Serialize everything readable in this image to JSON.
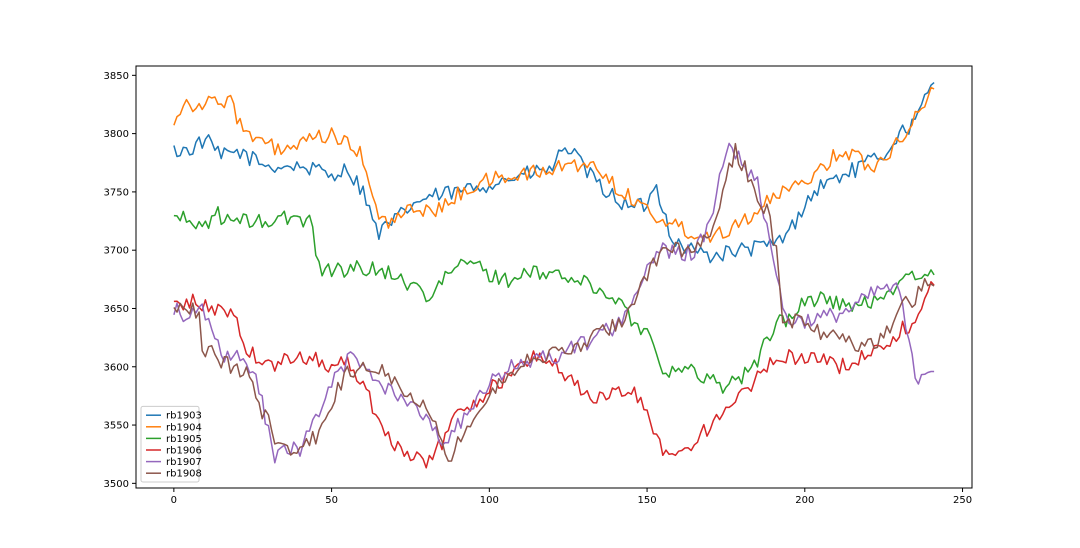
{
  "chart_data": {
    "type": "line",
    "title": "",
    "xlabel": "",
    "ylabel": "",
    "xlim": [
      -12,
      253
    ],
    "ylim": [
      3496,
      3858
    ],
    "xticks": [
      0,
      50,
      100,
      150,
      200,
      250
    ],
    "yticks": [
      3500,
      3550,
      3600,
      3650,
      3700,
      3750,
      3800,
      3850
    ],
    "grid": false,
    "legend_position": "lower-left",
    "x_length": 242,
    "series": [
      {
        "name": "rb1903",
        "color": "#1f77b4",
        "anchors": [
          [
            0,
            3785
          ],
          [
            5,
            3786
          ],
          [
            10,
            3795
          ],
          [
            15,
            3780
          ],
          [
            20,
            3785
          ],
          [
            25,
            3778
          ],
          [
            30,
            3772
          ],
          [
            40,
            3772
          ],
          [
            50,
            3765
          ],
          [
            55,
            3770
          ],
          [
            58,
            3758
          ],
          [
            60,
            3752
          ],
          [
            63,
            3725
          ],
          [
            65,
            3715
          ],
          [
            70,
            3725
          ],
          [
            75,
            3738
          ],
          [
            80,
            3745
          ],
          [
            90,
            3750
          ],
          [
            100,
            3757
          ],
          [
            110,
            3764
          ],
          [
            120,
            3770
          ],
          [
            124,
            3790
          ],
          [
            126,
            3785
          ],
          [
            130,
            3770
          ],
          [
            135,
            3755
          ],
          [
            140,
            3745
          ],
          [
            145,
            3735
          ],
          [
            150,
            3740
          ],
          [
            153,
            3755
          ],
          [
            158,
            3710
          ],
          [
            160,
            3705
          ],
          [
            165,
            3700
          ],
          [
            170,
            3695
          ],
          [
            180,
            3700
          ],
          [
            190,
            3705
          ],
          [
            195,
            3715
          ],
          [
            200,
            3740
          ],
          [
            205,
            3755
          ],
          [
            210,
            3762
          ],
          [
            215,
            3768
          ],
          [
            220,
            3775
          ],
          [
            225,
            3782
          ],
          [
            230,
            3800
          ],
          [
            235,
            3810
          ],
          [
            240,
            3840
          ]
        ]
      },
      {
        "name": "rb1904",
        "color": "#ff7f0e",
        "anchors": [
          [
            0,
            3812
          ],
          [
            3,
            3826
          ],
          [
            10,
            3825
          ],
          [
            15,
            3828
          ],
          [
            19,
            3832
          ],
          [
            20,
            3810
          ],
          [
            25,
            3795
          ],
          [
            35,
            3785
          ],
          [
            45,
            3795
          ],
          [
            50,
            3800
          ],
          [
            55,
            3790
          ],
          [
            60,
            3780
          ],
          [
            63,
            3745
          ],
          [
            65,
            3725
          ],
          [
            70,
            3725
          ],
          [
            75,
            3735
          ],
          [
            80,
            3735
          ],
          [
            85,
            3735
          ],
          [
            90,
            3748
          ],
          [
            95,
            3755
          ],
          [
            100,
            3760
          ],
          [
            110,
            3765
          ],
          [
            120,
            3768
          ],
          [
            125,
            3775
          ],
          [
            135,
            3770
          ],
          [
            140,
            3755
          ],
          [
            145,
            3745
          ],
          [
            150,
            3735
          ],
          [
            155,
            3725
          ],
          [
            160,
            3720
          ],
          [
            165,
            3715
          ],
          [
            170,
            3712
          ],
          [
            175,
            3718
          ],
          [
            180,
            3725
          ],
          [
            185,
            3735
          ],
          [
            190,
            3745
          ],
          [
            195,
            3750
          ],
          [
            200,
            3760
          ],
          [
            205,
            3770
          ],
          [
            210,
            3782
          ],
          [
            215,
            3785
          ],
          [
            220,
            3770
          ],
          [
            225,
            3780
          ],
          [
            230,
            3795
          ],
          [
            235,
            3815
          ],
          [
            240,
            3835
          ]
        ]
      },
      {
        "name": "rb1905",
        "color": "#2ca02c",
        "anchors": [
          [
            0,
            3730
          ],
          [
            5,
            3724
          ],
          [
            10,
            3722
          ],
          [
            13,
            3732
          ],
          [
            18,
            3724
          ],
          [
            25,
            3725
          ],
          [
            30,
            3724
          ],
          [
            35,
            3727
          ],
          [
            40,
            3727
          ],
          [
            44,
            3724
          ],
          [
            45,
            3695
          ],
          [
            47,
            3685
          ],
          [
            50,
            3683
          ],
          [
            60,
            3685
          ],
          [
            70,
            3680
          ],
          [
            75,
            3670
          ],
          [
            80,
            3662
          ],
          [
            85,
            3672
          ],
          [
            90,
            3688
          ],
          [
            95,
            3688
          ],
          [
            100,
            3680
          ],
          [
            105,
            3674
          ],
          [
            110,
            3678
          ],
          [
            115,
            3680
          ],
          [
            120,
            3680
          ],
          [
            125,
            3677
          ],
          [
            130,
            3672
          ],
          [
            135,
            3665
          ],
          [
            140,
            3660
          ],
          [
            145,
            3640
          ],
          [
            150,
            3630
          ],
          [
            155,
            3600
          ],
          [
            160,
            3595
          ],
          [
            165,
            3596
          ],
          [
            170,
            3590
          ],
          [
            175,
            3583
          ],
          [
            180,
            3592
          ],
          [
            185,
            3605
          ],
          [
            190,
            3635
          ],
          [
            195,
            3642
          ],
          [
            200,
            3655
          ],
          [
            205,
            3660
          ],
          [
            210,
            3655
          ],
          [
            215,
            3650
          ],
          [
            220,
            3655
          ],
          [
            225,
            3662
          ],
          [
            230,
            3672
          ],
          [
            235,
            3678
          ],
          [
            240,
            3678
          ]
        ]
      },
      {
        "name": "rb1906",
        "color": "#d62728",
        "anchors": [
          [
            0,
            3652
          ],
          [
            5,
            3656
          ],
          [
            10,
            3652
          ],
          [
            15,
            3648
          ],
          [
            20,
            3645
          ],
          [
            22,
            3620
          ],
          [
            25,
            3610
          ],
          [
            30,
            3600
          ],
          [
            35,
            3605
          ],
          [
            40,
            3608
          ],
          [
            45,
            3608
          ],
          [
            50,
            3600
          ],
          [
            55,
            3605
          ],
          [
            60,
            3585
          ],
          [
            65,
            3555
          ],
          [
            70,
            3535
          ],
          [
            75,
            3520
          ],
          [
            80,
            3520
          ],
          [
            85,
            3535
          ],
          [
            90,
            3560
          ],
          [
            95,
            3570
          ],
          [
            100,
            3580
          ],
          [
            110,
            3600
          ],
          [
            115,
            3610
          ],
          [
            120,
            3605
          ],
          [
            125,
            3590
          ],
          [
            130,
            3578
          ],
          [
            135,
            3572
          ],
          [
            140,
            3578
          ],
          [
            145,
            3580
          ],
          [
            150,
            3560
          ],
          [
            155,
            3530
          ],
          [
            160,
            3525
          ],
          [
            165,
            3535
          ],
          [
            170,
            3550
          ],
          [
            175,
            3560
          ],
          [
            180,
            3575
          ],
          [
            185,
            3590
          ],
          [
            190,
            3605
          ],
          [
            195,
            3608
          ],
          [
            200,
            3610
          ],
          [
            205,
            3605
          ],
          [
            210,
            3600
          ],
          [
            215,
            3605
          ],
          [
            220,
            3610
          ],
          [
            225,
            3620
          ],
          [
            230,
            3630
          ],
          [
            235,
            3640
          ],
          [
            240,
            3672
          ]
        ]
      },
      {
        "name": "rb1907",
        "color": "#9467bd",
        "anchors": [
          [
            0,
            3650
          ],
          [
            3,
            3645
          ],
          [
            8,
            3655
          ],
          [
            12,
            3628
          ],
          [
            15,
            3610
          ],
          [
            20,
            3608
          ],
          [
            25,
            3595
          ],
          [
            28,
            3570
          ],
          [
            30,
            3545
          ],
          [
            32,
            3522
          ],
          [
            35,
            3528
          ],
          [
            40,
            3530
          ],
          [
            45,
            3555
          ],
          [
            50,
            3585
          ],
          [
            55,
            3605
          ],
          [
            57,
            3610
          ],
          [
            60,
            3600
          ],
          [
            65,
            3585
          ],
          [
            70,
            3580
          ],
          [
            75,
            3565
          ],
          [
            80,
            3560
          ],
          [
            85,
            3535
          ],
          [
            90,
            3550
          ],
          [
            95,
            3565
          ],
          [
            100,
            3585
          ],
          [
            105,
            3595
          ],
          [
            110,
            3605
          ],
          [
            120,
            3608
          ],
          [
            130,
            3620
          ],
          [
            140,
            3635
          ],
          [
            145,
            3655
          ],
          [
            150,
            3685
          ],
          [
            155,
            3700
          ],
          [
            160,
            3697
          ],
          [
            165,
            3698
          ],
          [
            170,
            3720
          ],
          [
            173,
            3770
          ],
          [
            176,
            3795
          ],
          [
            180,
            3775
          ],
          [
            185,
            3760
          ],
          [
            190,
            3695
          ],
          [
            193,
            3650
          ],
          [
            195,
            3640
          ],
          [
            200,
            3640
          ],
          [
            205,
            3642
          ],
          [
            210,
            3645
          ],
          [
            215,
            3650
          ],
          [
            220,
            3660
          ],
          [
            225,
            3668
          ],
          [
            230,
            3665
          ],
          [
            235,
            3590
          ],
          [
            240,
            3600
          ]
        ]
      },
      {
        "name": "rb1908",
        "color": "#8c564b",
        "anchors": [
          [
            0,
            3652
          ],
          [
            5,
            3652
          ],
          [
            8,
            3642
          ],
          [
            9,
            3615
          ],
          [
            12,
            3615
          ],
          [
            15,
            3605
          ],
          [
            20,
            3598
          ],
          [
            25,
            3590
          ],
          [
            28,
            3560
          ],
          [
            30,
            3555
          ],
          [
            32,
            3535
          ],
          [
            35,
            3530
          ],
          [
            40,
            3528
          ],
          [
            45,
            3540
          ],
          [
            50,
            3570
          ],
          [
            55,
            3595
          ],
          [
            60,
            3600
          ],
          [
            65,
            3600
          ],
          [
            70,
            3590
          ],
          [
            75,
            3575
          ],
          [
            80,
            3570
          ],
          [
            85,
            3535
          ],
          [
            88,
            3520
          ],
          [
            90,
            3535
          ],
          [
            95,
            3555
          ],
          [
            100,
            3575
          ],
          [
            105,
            3590
          ],
          [
            110,
            3605
          ],
          [
            115,
            3608
          ],
          [
            120,
            3610
          ],
          [
            125,
            3615
          ],
          [
            130,
            3620
          ],
          [
            135,
            3628
          ],
          [
            140,
            3635
          ],
          [
            145,
            3650
          ],
          [
            150,
            3680
          ],
          [
            155,
            3700
          ],
          [
            160,
            3700
          ],
          [
            165,
            3700
          ],
          [
            170,
            3710
          ],
          [
            175,
            3760
          ],
          [
            178,
            3785
          ],
          [
            182,
            3765
          ],
          [
            185,
            3745
          ],
          [
            188,
            3735
          ],
          [
            191,
            3700
          ],
          [
            193,
            3640
          ],
          [
            195,
            3640
          ],
          [
            200,
            3638
          ],
          [
            205,
            3630
          ],
          [
            210,
            3625
          ],
          [
            215,
            3620
          ],
          [
            220,
            3620
          ],
          [
            225,
            3625
          ],
          [
            230,
            3650
          ],
          [
            235,
            3660
          ],
          [
            240,
            3675
          ]
        ]
      }
    ]
  }
}
